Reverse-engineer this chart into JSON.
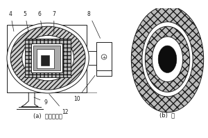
{
  "bg_color": "#ffffff",
  "line_color": "#1a1a1a",
  "hatch_light": "#c8c8c8",
  "hatch_dark": "#aaaaaa",
  "title_a": "(a)  微波管式炉",
  "title_b": "(b)  保",
  "fig_width": 3.0,
  "fig_height": 2.0,
  "dpi": 100
}
